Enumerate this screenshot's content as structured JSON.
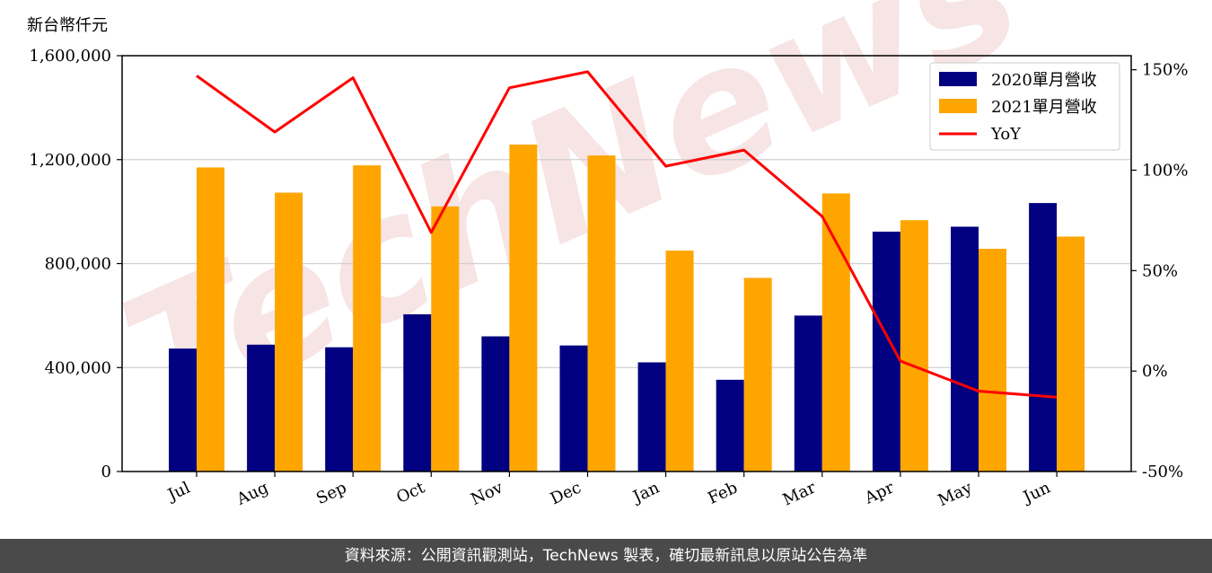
{
  "unit_label": "新台幣仟元",
  "footer_text": "資料來源：公開資訊觀測站，TechNews 製表，確切最新訊息以原站公告為準",
  "watermark": "TechNews",
  "chart_data": {
    "type": "bar",
    "categories": [
      "Jul",
      "Aug",
      "Sep",
      "Oct",
      "Nov",
      "Dec",
      "Jan",
      "Feb",
      "Mar",
      "Apr",
      "May",
      "Jun"
    ],
    "series": [
      {
        "name": "2020單月營收",
        "type": "bar",
        "axis": "left",
        "color": "#000080",
        "values": [
          473000,
          488000,
          478000,
          605000,
          520000,
          485000,
          420000,
          353000,
          600000,
          923000,
          942000,
          1033000
        ]
      },
      {
        "name": "2021單月營收",
        "type": "bar",
        "axis": "left",
        "color": "#FFA500",
        "values": [
          1170000,
          1073000,
          1178000,
          1020000,
          1258000,
          1216000,
          850000,
          745000,
          1070000,
          967000,
          857000,
          904000
        ]
      },
      {
        "name": "YoY",
        "type": "line",
        "axis": "right",
        "color": "#FF0000",
        "values": [
          147,
          119,
          146,
          69,
          141,
          149,
          102,
          110,
          77,
          5,
          -10,
          -13
        ]
      }
    ],
    "y_left": {
      "ticks": [
        "0",
        "400,000",
        "800,000",
        "1,200,000",
        "1,600,000"
      ],
      "ylim": [
        0,
        1600000
      ]
    },
    "y_right": {
      "ticks": [
        "-50%",
        "0%",
        "50%",
        "100%",
        "150%"
      ],
      "ylim": [
        -50,
        157
      ]
    },
    "grid": "horizontal",
    "legend_position": "top-right"
  }
}
